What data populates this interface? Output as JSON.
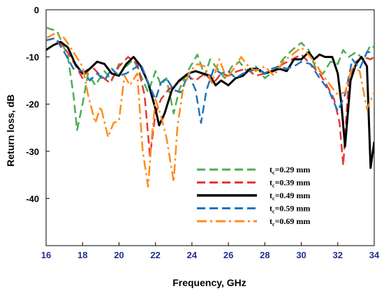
{
  "chart_data": {
    "type": "line",
    "title": "",
    "xlabel": "Frequency, GHz",
    "ylabel": "Return loss, dB",
    "xlim": [
      16,
      34
    ],
    "ylim": [
      -50,
      0
    ],
    "xticks": [
      "16",
      "18",
      "20",
      "22",
      "24",
      "26",
      "28",
      "30",
      "32",
      "34"
    ],
    "yticks": [
      "0",
      "-10",
      "-20",
      "-30",
      "-40"
    ],
    "grid": false,
    "legend_position": "lower-middle",
    "series": [
      {
        "name": "tc=0.29 mm",
        "label_main": "t",
        "label_sub": "c",
        "label_rest": "=0.29 mm",
        "color": "#4caf50",
        "style": "dashed",
        "x": [
          16,
          16.6,
          17.2,
          17.5,
          17.7,
          18.0,
          18.3,
          18.7,
          19.2,
          19.6,
          20.0,
          20.4,
          20.8,
          21.2,
          21.6,
          22.0,
          22.3,
          22.6,
          23.0,
          23.3,
          23.7,
          24.0,
          24.3,
          24.7,
          25.0,
          25.4,
          25.8,
          26.2,
          26.6,
          27.0,
          27.5,
          28.0,
          28.5,
          29.0,
          29.5,
          30.0,
          30.4,
          30.8,
          31.2,
          31.6,
          32.0,
          32.3,
          32.6,
          33.0,
          33.4,
          33.8,
          34.0
        ],
        "y": [
          -3.8,
          -4.5,
          -10.0,
          -18.0,
          -25.5,
          -20.0,
          -13.5,
          -16.0,
          -13.0,
          -15.0,
          -11.5,
          -12.0,
          -10.5,
          -14.0,
          -17.5,
          -13.0,
          -16.0,
          -14.5,
          -22.0,
          -17.0,
          -13.5,
          -11.5,
          -9.5,
          -14.0,
          -10.5,
          -12.5,
          -14.5,
          -12.0,
          -11.0,
          -13.0,
          -12.0,
          -14.5,
          -13.0,
          -10.5,
          -8.5,
          -7.0,
          -8.5,
          -12.5,
          -13.5,
          -11.0,
          -11.5,
          -8.5,
          -10.0,
          -9.0,
          -10.5,
          -7.5,
          -8.0
        ]
      },
      {
        "name": "tc=0.39 mm",
        "label_main": "t",
        "label_sub": "c",
        "label_rest": "=0.39 mm",
        "color": "#e53935",
        "style": "dashed",
        "x": [
          16,
          16.5,
          17.0,
          17.5,
          18.0,
          18.5,
          19.0,
          19.5,
          20.0,
          20.5,
          21.0,
          21.4,
          21.7,
          22.0,
          22.3,
          22.7,
          23.2,
          23.7,
          24.2,
          24.7,
          25.2,
          25.6,
          26.0,
          26.5,
          27.0,
          27.5,
          28.0,
          28.5,
          29.0,
          29.5,
          30.0,
          30.5,
          31.0,
          31.4,
          31.8,
          32.1,
          32.3,
          32.6,
          33.0,
          33.4,
          33.8,
          34.0
        ],
        "y": [
          -6.5,
          -6.0,
          -8.0,
          -11.0,
          -14.5,
          -12.0,
          -14.0,
          -15.5,
          -12.0,
          -10.0,
          -11.5,
          -18.0,
          -31.0,
          -22.0,
          -19.0,
          -17.0,
          -15.5,
          -14.0,
          -15.0,
          -13.5,
          -15.5,
          -13.5,
          -14.0,
          -13.0,
          -12.5,
          -14.0,
          -13.5,
          -13.0,
          -11.5,
          -10.5,
          -9.5,
          -11.5,
          -13.5,
          -16.0,
          -19.0,
          -24.0,
          -33.0,
          -15.0,
          -11.0,
          -10.0,
          -10.5,
          -10.0
        ]
      },
      {
        "name": "tc=0.49 mm",
        "label_main": "t",
        "label_sub": "c",
        "label_rest": "=0.49 mm",
        "color": "#000000",
        "style": "solid",
        "x": [
          16,
          16.4,
          16.8,
          17.2,
          17.6,
          18.0,
          18.4,
          18.8,
          19.2,
          19.6,
          20.0,
          20.4,
          20.8,
          21.2,
          21.6,
          22.0,
          22.2,
          22.5,
          22.9,
          23.3,
          23.8,
          24.2,
          24.6,
          25.0,
          25.3,
          25.6,
          26.0,
          26.4,
          26.8,
          27.2,
          27.6,
          28.0,
          28.4,
          28.8,
          29.2,
          29.6,
          30.0,
          30.4,
          30.7,
          31.0,
          31.3,
          31.7,
          32.0,
          32.2,
          32.4,
          32.7,
          33.0,
          33.3,
          33.6,
          33.8,
          34.0
        ],
        "y": [
          -8.5,
          -7.5,
          -6.8,
          -8.0,
          -11.5,
          -13.5,
          -12.5,
          -11.0,
          -11.5,
          -13.5,
          -14.0,
          -11.5,
          -10.0,
          -12.0,
          -15.5,
          -21.0,
          -24.5,
          -22.0,
          -17.0,
          -15.0,
          -13.5,
          -13.0,
          -13.5,
          -14.0,
          -16.0,
          -15.0,
          -16.0,
          -14.5,
          -14.0,
          -12.5,
          -12.5,
          -13.5,
          -13.0,
          -12.5,
          -13.0,
          -10.5,
          -10.5,
          -9.0,
          -10.5,
          -9.5,
          -10.0,
          -10.0,
          -13.5,
          -20.0,
          -29.0,
          -15.0,
          -11.5,
          -10.0,
          -12.0,
          -33.5,
          -28.0
        ]
      },
      {
        "name": "tc=0.59 mm",
        "label_main": "t",
        "label_sub": "c",
        "label_rest": "=0.59 mm",
        "color": "#1e73be",
        "style": "dashed",
        "x": [
          16,
          16.5,
          17.0,
          17.5,
          18.0,
          18.4,
          18.8,
          19.2,
          19.6,
          20.0,
          20.4,
          20.8,
          21.2,
          21.6,
          22.0,
          22.3,
          22.6,
          23.0,
          23.4,
          23.8,
          24.2,
          24.5,
          24.8,
          25.2,
          25.6,
          26.0,
          26.4,
          26.8,
          27.2,
          27.6,
          28.0,
          28.4,
          28.8,
          29.2,
          29.6,
          30.0,
          30.5,
          31.0,
          31.5,
          32.0,
          32.4,
          32.8,
          33.2,
          33.6,
          34.0
        ],
        "y": [
          -6.5,
          -6.0,
          -9.0,
          -12.5,
          -13.0,
          -15.0,
          -13.5,
          -15.0,
          -12.5,
          -14.0,
          -13.5,
          -12.5,
          -11.5,
          -15.5,
          -19.0,
          -15.5,
          -14.5,
          -17.0,
          -17.5,
          -13.5,
          -17.0,
          -24.0,
          -17.0,
          -12.5,
          -13.5,
          -13.0,
          -14.5,
          -13.5,
          -13.0,
          -12.5,
          -13.5,
          -12.5,
          -12.0,
          -12.5,
          -12.0,
          -11.0,
          -11.5,
          -14.5,
          -17.0,
          -21.5,
          -18.0,
          -10.5,
          -12.5,
          -9.0,
          -9.0
        ]
      },
      {
        "name": "tc=0.69 mm",
        "label_main": "t",
        "label_sub": "c",
        "label_rest": "=0.69 mm",
        "color": "#ff8c1a",
        "style": "dashdot",
        "x": [
          16,
          16.5,
          17.0,
          17.5,
          18.0,
          18.3,
          18.7,
          19.0,
          19.4,
          19.7,
          20.0,
          20.3,
          20.6,
          21.0,
          21.3,
          21.6,
          21.8,
          22.0,
          22.3,
          22.6,
          23.0,
          23.2,
          23.5,
          23.9,
          24.3,
          24.7,
          25.1,
          25.5,
          25.9,
          26.3,
          26.7,
          27.1,
          27.5,
          28.0,
          28.5,
          29.0,
          29.5,
          30.0,
          30.4,
          30.8,
          31.2,
          31.6,
          32.0,
          32.4,
          32.8,
          33.2,
          33.6,
          34.0
        ],
        "y": [
          -6.0,
          -5.0,
          -6.0,
          -9.0,
          -12.0,
          -18.0,
          -24.0,
          -20.5,
          -27.0,
          -24.0,
          -23.5,
          -14.0,
          -16.0,
          -13.5,
          -30.0,
          -37.5,
          -27.0,
          -19.0,
          -22.5,
          -27.0,
          -36.5,
          -25.0,
          -17.0,
          -13.0,
          -11.5,
          -12.0,
          -15.5,
          -10.5,
          -14.5,
          -12.5,
          -10.0,
          -12.0,
          -13.0,
          -12.0,
          -14.0,
          -11.0,
          -9.5,
          -8.0,
          -9.5,
          -11.5,
          -14.0,
          -16.0,
          -18.0,
          -17.5,
          -12.0,
          -13.0,
          -21.0,
          -17.5
        ]
      }
    ]
  }
}
